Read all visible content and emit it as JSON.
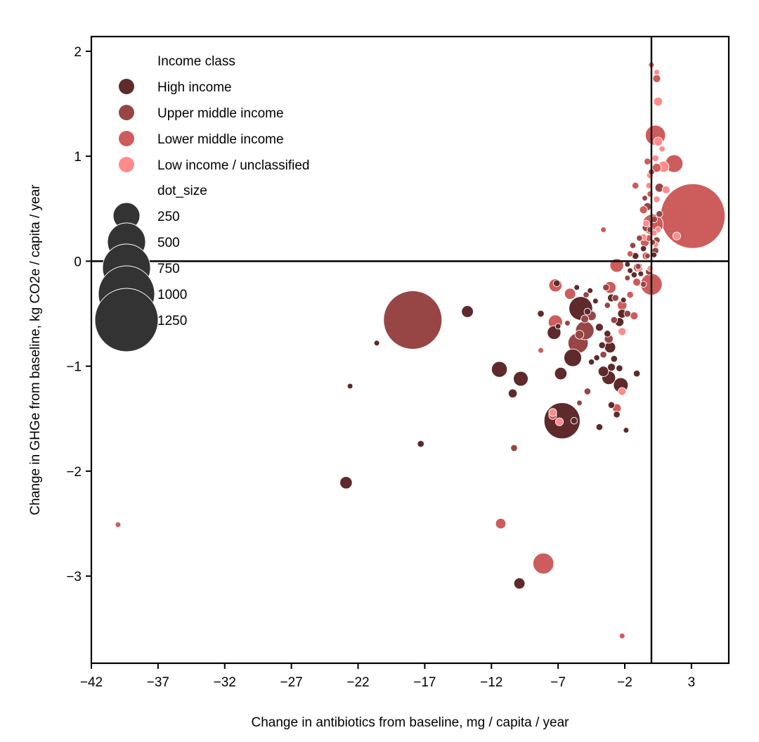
{
  "chart_data": {
    "type": "scatter",
    "title": "",
    "xlabel": "Change in antibiotics from baseline, mg / capita / year",
    "ylabel": "Change in GHGe from baseline, kg CO2e / capita / year",
    "xlim": [
      -42,
      5.8
    ],
    "ylim": [
      -3.83,
      2.14
    ],
    "x_ticks": [
      -42,
      -37,
      -32,
      -27,
      -22,
      -17,
      -12,
      -7,
      -2,
      3
    ],
    "x_tick_labels": [
      "−42",
      "−37",
      "−32",
      "−27",
      "−22",
      "−17",
      "−12",
      "−7",
      "−2",
      "3"
    ],
    "y_ticks": [
      2,
      1,
      0,
      -1,
      -2,
      -3
    ],
    "y_tick_labels": [
      "2",
      "1",
      "0",
      "−1",
      "−2",
      "−3"
    ],
    "reference_lines": {
      "x": 0,
      "y": 0
    },
    "grid": false,
    "legend": {
      "position": "upper-left",
      "hue_title": "Income class",
      "size_title": "dot_size",
      "size_entries": [
        250,
        500,
        750,
        1000,
        1250
      ]
    },
    "series": [
      {
        "name": "High income",
        "color": "#5e2a2b",
        "points": [
          [
            -5.3,
            -0.45,
            180
          ],
          [
            -6.7,
            -1.52,
            420
          ],
          [
            -5.9,
            -0.92,
            100
          ],
          [
            -6.8,
            -1.07,
            50
          ],
          [
            -7.1,
            -0.21,
            15
          ],
          [
            -7.3,
            -0.68,
            60
          ],
          [
            -11.4,
            -1.03,
            80
          ],
          [
            -9.8,
            -1.12,
            70
          ],
          [
            -10.4,
            -1.26,
            25
          ],
          [
            -13.8,
            -0.48,
            45
          ],
          [
            -22.9,
            -2.11,
            50
          ],
          [
            -9.9,
            -3.07,
            40
          ],
          [
            -2.4,
            -1.02,
            15
          ],
          [
            -2.3,
            -1.18,
            70
          ],
          [
            -1.1,
            -1.07,
            15
          ],
          [
            -1.9,
            -1.61,
            10
          ],
          [
            -3.0,
            -1.01,
            20
          ],
          [
            -3.6,
            -1.05,
            35
          ],
          [
            -3.2,
            -1.11,
            60
          ],
          [
            -3.0,
            -0.35,
            20
          ],
          [
            -4.8,
            -0.48,
            15
          ],
          [
            -4.2,
            -0.38,
            10
          ],
          [
            -3.9,
            -0.63,
            20
          ],
          [
            -3.3,
            -0.69,
            15
          ],
          [
            -3.1,
            -0.82,
            40
          ],
          [
            -2.4,
            -0.58,
            25
          ],
          [
            -3.7,
            -0.8,
            15
          ],
          [
            -4.5,
            -0.96,
            12
          ],
          [
            -4.1,
            -0.92,
            12
          ],
          [
            -2.8,
            -0.93,
            15
          ],
          [
            -2.2,
            -0.5,
            25
          ],
          [
            -1.6,
            -0.09,
            10
          ],
          [
            -2.1,
            -0.37,
            10
          ],
          [
            -1.3,
            -0.13,
            12
          ],
          [
            -3.9,
            -1.58,
            15
          ],
          [
            -3.0,
            -1.37,
            15
          ],
          [
            -2.6,
            -1.46,
            15
          ],
          [
            -5.8,
            -1.52,
            15
          ],
          [
            -8.3,
            -0.5,
            15
          ],
          [
            -17.3,
            -1.74,
            15
          ],
          [
            -22.6,
            -1.19,
            10
          ],
          [
            -20.6,
            -0.78,
            10
          ],
          [
            -7.0,
            -0.62,
            10
          ],
          [
            -0.8,
            -0.12,
            10
          ],
          [
            0.2,
            0.06,
            10
          ],
          [
            -4.6,
            -0.28,
            10
          ],
          [
            -1.8,
            -0.03,
            10
          ],
          [
            -5.6,
            -0.25,
            10
          ],
          [
            -0.6,
            0.12,
            12
          ],
          [
            -1.2,
            0.05,
            15
          ]
        ]
      },
      {
        "name": "Upper middle income",
        "color": "#974545",
        "points": [
          [
            -17.9,
            -0.56,
            1100
          ],
          [
            -5.0,
            -0.66,
            110
          ],
          [
            -5.5,
            -0.78,
            130
          ],
          [
            -4.5,
            -0.52,
            30
          ],
          [
            -5.4,
            -0.7,
            25
          ],
          [
            -5.0,
            -0.55,
            20
          ],
          [
            -4.8,
            -1.24,
            15
          ],
          [
            -5.4,
            -1.35,
            10
          ],
          [
            -10.3,
            -1.78,
            15
          ],
          [
            -3.6,
            -0.89,
            15
          ],
          [
            -3.2,
            -0.74,
            25
          ],
          [
            -3.3,
            -0.42,
            12
          ],
          [
            -2.7,
            -0.35,
            15
          ],
          [
            -1.8,
            -0.16,
            10
          ],
          [
            -1.0,
            -0.05,
            12
          ],
          [
            -0.3,
            0.05,
            10
          ],
          [
            -0.2,
            -0.1,
            15
          ],
          [
            0.3,
            0.1,
            15
          ],
          [
            -0.4,
            0.32,
            20
          ],
          [
            -0.9,
            0.22,
            12
          ],
          [
            -0.3,
            0.52,
            20
          ],
          [
            0.6,
            0.7,
            25
          ],
          [
            0.2,
            0.4,
            15
          ],
          [
            -0.1,
            0.3,
            12
          ],
          [
            0.4,
            0.2,
            15
          ],
          [
            0.1,
            0.18,
            10
          ],
          [
            0.6,
            0.45,
            15
          ],
          [
            0.0,
            0.85,
            12
          ],
          [
            -1.4,
            0.15,
            12
          ],
          [
            -1.8,
            -0.5,
            15
          ],
          [
            -2.8,
            -0.56,
            15
          ],
          [
            -0.6,
            -0.22,
            12
          ],
          [
            -6.3,
            -0.59,
            10
          ],
          [
            -4.9,
            -0.32,
            12
          ],
          [
            -3.4,
            -0.25,
            15
          ],
          [
            -0.5,
            0.6,
            10
          ]
        ]
      },
      {
        "name": "Lower middle income",
        "color": "#cd5c5c",
        "points": [
          [
            3.1,
            0.43,
            1350
          ],
          [
            0.3,
            1.2,
            130
          ],
          [
            0.0,
            -0.22,
            150
          ],
          [
            1.7,
            0.93,
            100
          ],
          [
            0.1,
            0.35,
            140
          ],
          [
            -2.6,
            -0.04,
            60
          ],
          [
            -11.3,
            -2.5,
            35
          ],
          [
            -8.1,
            -2.88,
            140
          ],
          [
            -7.2,
            -0.58,
            65
          ],
          [
            -7.2,
            -0.23,
            55
          ],
          [
            -6.1,
            -0.31,
            40
          ],
          [
            -3.1,
            -0.25,
            45
          ],
          [
            -2.2,
            -0.42,
            30
          ],
          [
            -2.6,
            -1.4,
            25
          ],
          [
            -7.4,
            -1.47,
            20
          ],
          [
            -40.0,
            -2.51,
            10
          ],
          [
            -8.3,
            -0.85,
            10
          ],
          [
            -3.6,
            0.3,
            10
          ],
          [
            -1.0,
            -0.06,
            30
          ],
          [
            -0.5,
            0.18,
            25
          ],
          [
            -0.6,
            0.49,
            20
          ],
          [
            -1.2,
            0.72,
            15
          ],
          [
            0.4,
            1.74,
            20
          ],
          [
            0.0,
            1.87,
            10
          ],
          [
            -0.3,
            0.95,
            15
          ],
          [
            0.4,
            0.89,
            25
          ],
          [
            -0.4,
            0.05,
            20
          ],
          [
            -1.1,
            -0.2,
            20
          ],
          [
            -0.2,
            0.22,
            15
          ],
          [
            -1.3,
            -0.52,
            20
          ],
          [
            -1.6,
            -0.32,
            15
          ],
          [
            -2.2,
            -3.57,
            10
          ],
          [
            -1.6,
            0.07,
            12
          ],
          [
            -0.1,
            0.64,
            12
          ]
        ]
      },
      {
        "name": "Low income / unclassified",
        "color": "#ff8b8b",
        "points": [
          [
            0.9,
            0.9,
            40
          ],
          [
            0.5,
            1.52,
            25
          ],
          [
            0.4,
            1.8,
            10
          ],
          [
            0.5,
            1.14,
            25
          ],
          [
            0.8,
            1.07,
            12
          ],
          [
            0.3,
            0.98,
            15
          ],
          [
            -0.1,
            0.82,
            15
          ],
          [
            -0.2,
            0.72,
            12
          ],
          [
            1.1,
            0.68,
            20
          ],
          [
            1.9,
            0.24,
            20
          ],
          [
            0.4,
            0.59,
            15
          ],
          [
            0.5,
            0.3,
            12
          ],
          [
            0.2,
            0.27,
            12
          ],
          [
            -0.4,
            0.36,
            15
          ],
          [
            0.3,
            0.16,
            12
          ],
          [
            -0.6,
            0.23,
            15
          ],
          [
            -0.9,
            -0.07,
            15
          ],
          [
            -2.2,
            -1.24,
            20
          ],
          [
            -2.2,
            -0.67,
            20
          ],
          [
            -7.4,
            -1.44,
            20
          ],
          [
            -6.9,
            -1.53,
            20
          ],
          [
            -0.1,
            -0.07,
            12
          ]
        ]
      }
    ]
  }
}
